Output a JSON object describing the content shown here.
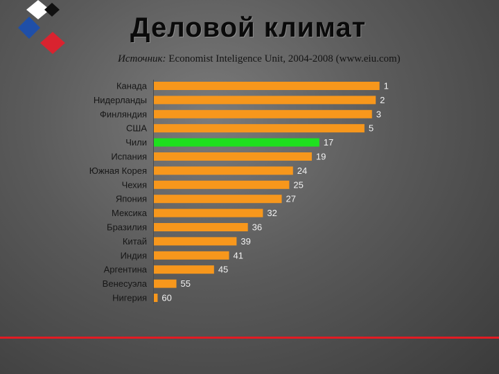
{
  "header": {
    "title": "Деловой климат",
    "source_lead": "Источник:",
    "source_rest": "Economist Inteligence Unit, 2004-2008  (www.eiu.com)"
  },
  "logo": {
    "icon": "diamond-cluster-logo",
    "colors": [
      "#111111",
      "#ffffff",
      "#1f4fa8",
      "#d9232f"
    ]
  },
  "chart_data": {
    "type": "bar",
    "orientation": "horizontal",
    "title": "",
    "xlabel": "",
    "ylabel": "",
    "grid": false,
    "legend": "none",
    "xlim": [
      0,
      61
    ],
    "categories": [
      "Канада",
      "Нидерланды",
      "Финляндия",
      "США",
      "Чили",
      "Испания",
      "Южная Корея",
      "Чехия",
      "Япония",
      "Мексика",
      "Бразилия",
      "Китай",
      "Индия",
      "Аргентина",
      "Венесуэла",
      "Нигерия"
    ],
    "values": [
      1,
      2,
      3,
      5,
      17,
      19,
      24,
      25,
      27,
      32,
      36,
      39,
      41,
      45,
      55,
      60
    ],
    "bar_color": "#f7971c",
    "highlight_category": "Чили",
    "highlight_color": "#1ee01e",
    "label_color": "#f2f2f2"
  },
  "footer": {
    "line_color": "#e31b23"
  }
}
